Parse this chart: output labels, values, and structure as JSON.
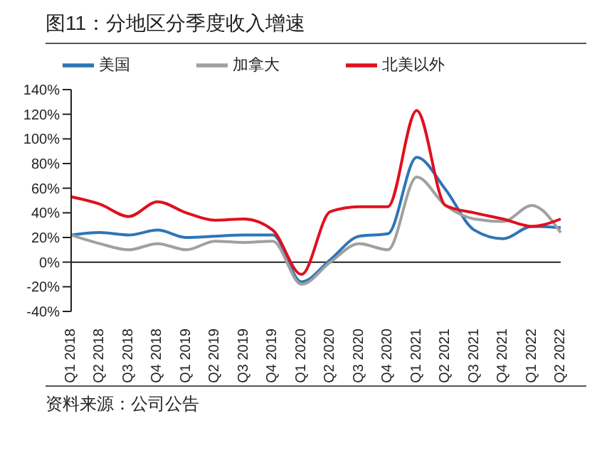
{
  "chart_data": {
    "type": "line",
    "title": "图11：分地区分季度收入增速",
    "annotations": [
      "资料来源：公司公告"
    ],
    "categories": [
      "Q1 2018",
      "Q2 2018",
      "Q3 2018",
      "Q4 2018",
      "Q1 2019",
      "Q2 2019",
      "Q3 2019",
      "Q4 2019",
      "Q1 2020",
      "Q2 2020",
      "Q3 2020",
      "Q4 2020",
      "Q1 2021",
      "Q2 2021",
      "Q3 2021",
      "Q4 2021",
      "Q1 2022",
      "Q2 2022"
    ],
    "series": [
      {
        "name": "美国",
        "color": "#2e75b6",
        "values": [
          22,
          24,
          22,
          26,
          20,
          21,
          22,
          22,
          -16,
          2,
          21,
          23,
          85,
          59,
          26,
          19,
          29,
          28
        ]
      },
      {
        "name": "加拿大",
        "color": "#a0a0a0",
        "values": [
          22,
          15,
          10,
          15,
          10,
          17,
          16,
          17,
          -18,
          0,
          15,
          10,
          69,
          46,
          35,
          33,
          46,
          24
        ]
      },
      {
        "name": "北美以外",
        "color": "#e0101e",
        "values": [
          53,
          47,
          37,
          49,
          40,
          34,
          35,
          26,
          -10,
          41,
          45,
          45,
          123,
          46,
          40,
          35,
          29,
          35
        ]
      }
    ],
    "ylim": [
      -40,
      140
    ],
    "yticks": [
      {
        "value": -40,
        "label": "-40%"
      },
      {
        "value": -20,
        "label": "-20%"
      },
      {
        "value": 0,
        "label": "0%"
      },
      {
        "value": 20,
        "label": "20%"
      },
      {
        "value": 40,
        "label": "40%"
      },
      {
        "value": 60,
        "label": "60%"
      },
      {
        "value": 80,
        "label": "80%"
      },
      {
        "value": 100,
        "label": "100%"
      },
      {
        "value": 120,
        "label": "120%"
      },
      {
        "value": 140,
        "label": "140%"
      }
    ],
    "ref_lines": [
      {
        "axis": "y",
        "value": 0,
        "color": "#222222"
      }
    ],
    "legend": "top",
    "grid": false,
    "marker": "none",
    "line_style": "solid"
  }
}
